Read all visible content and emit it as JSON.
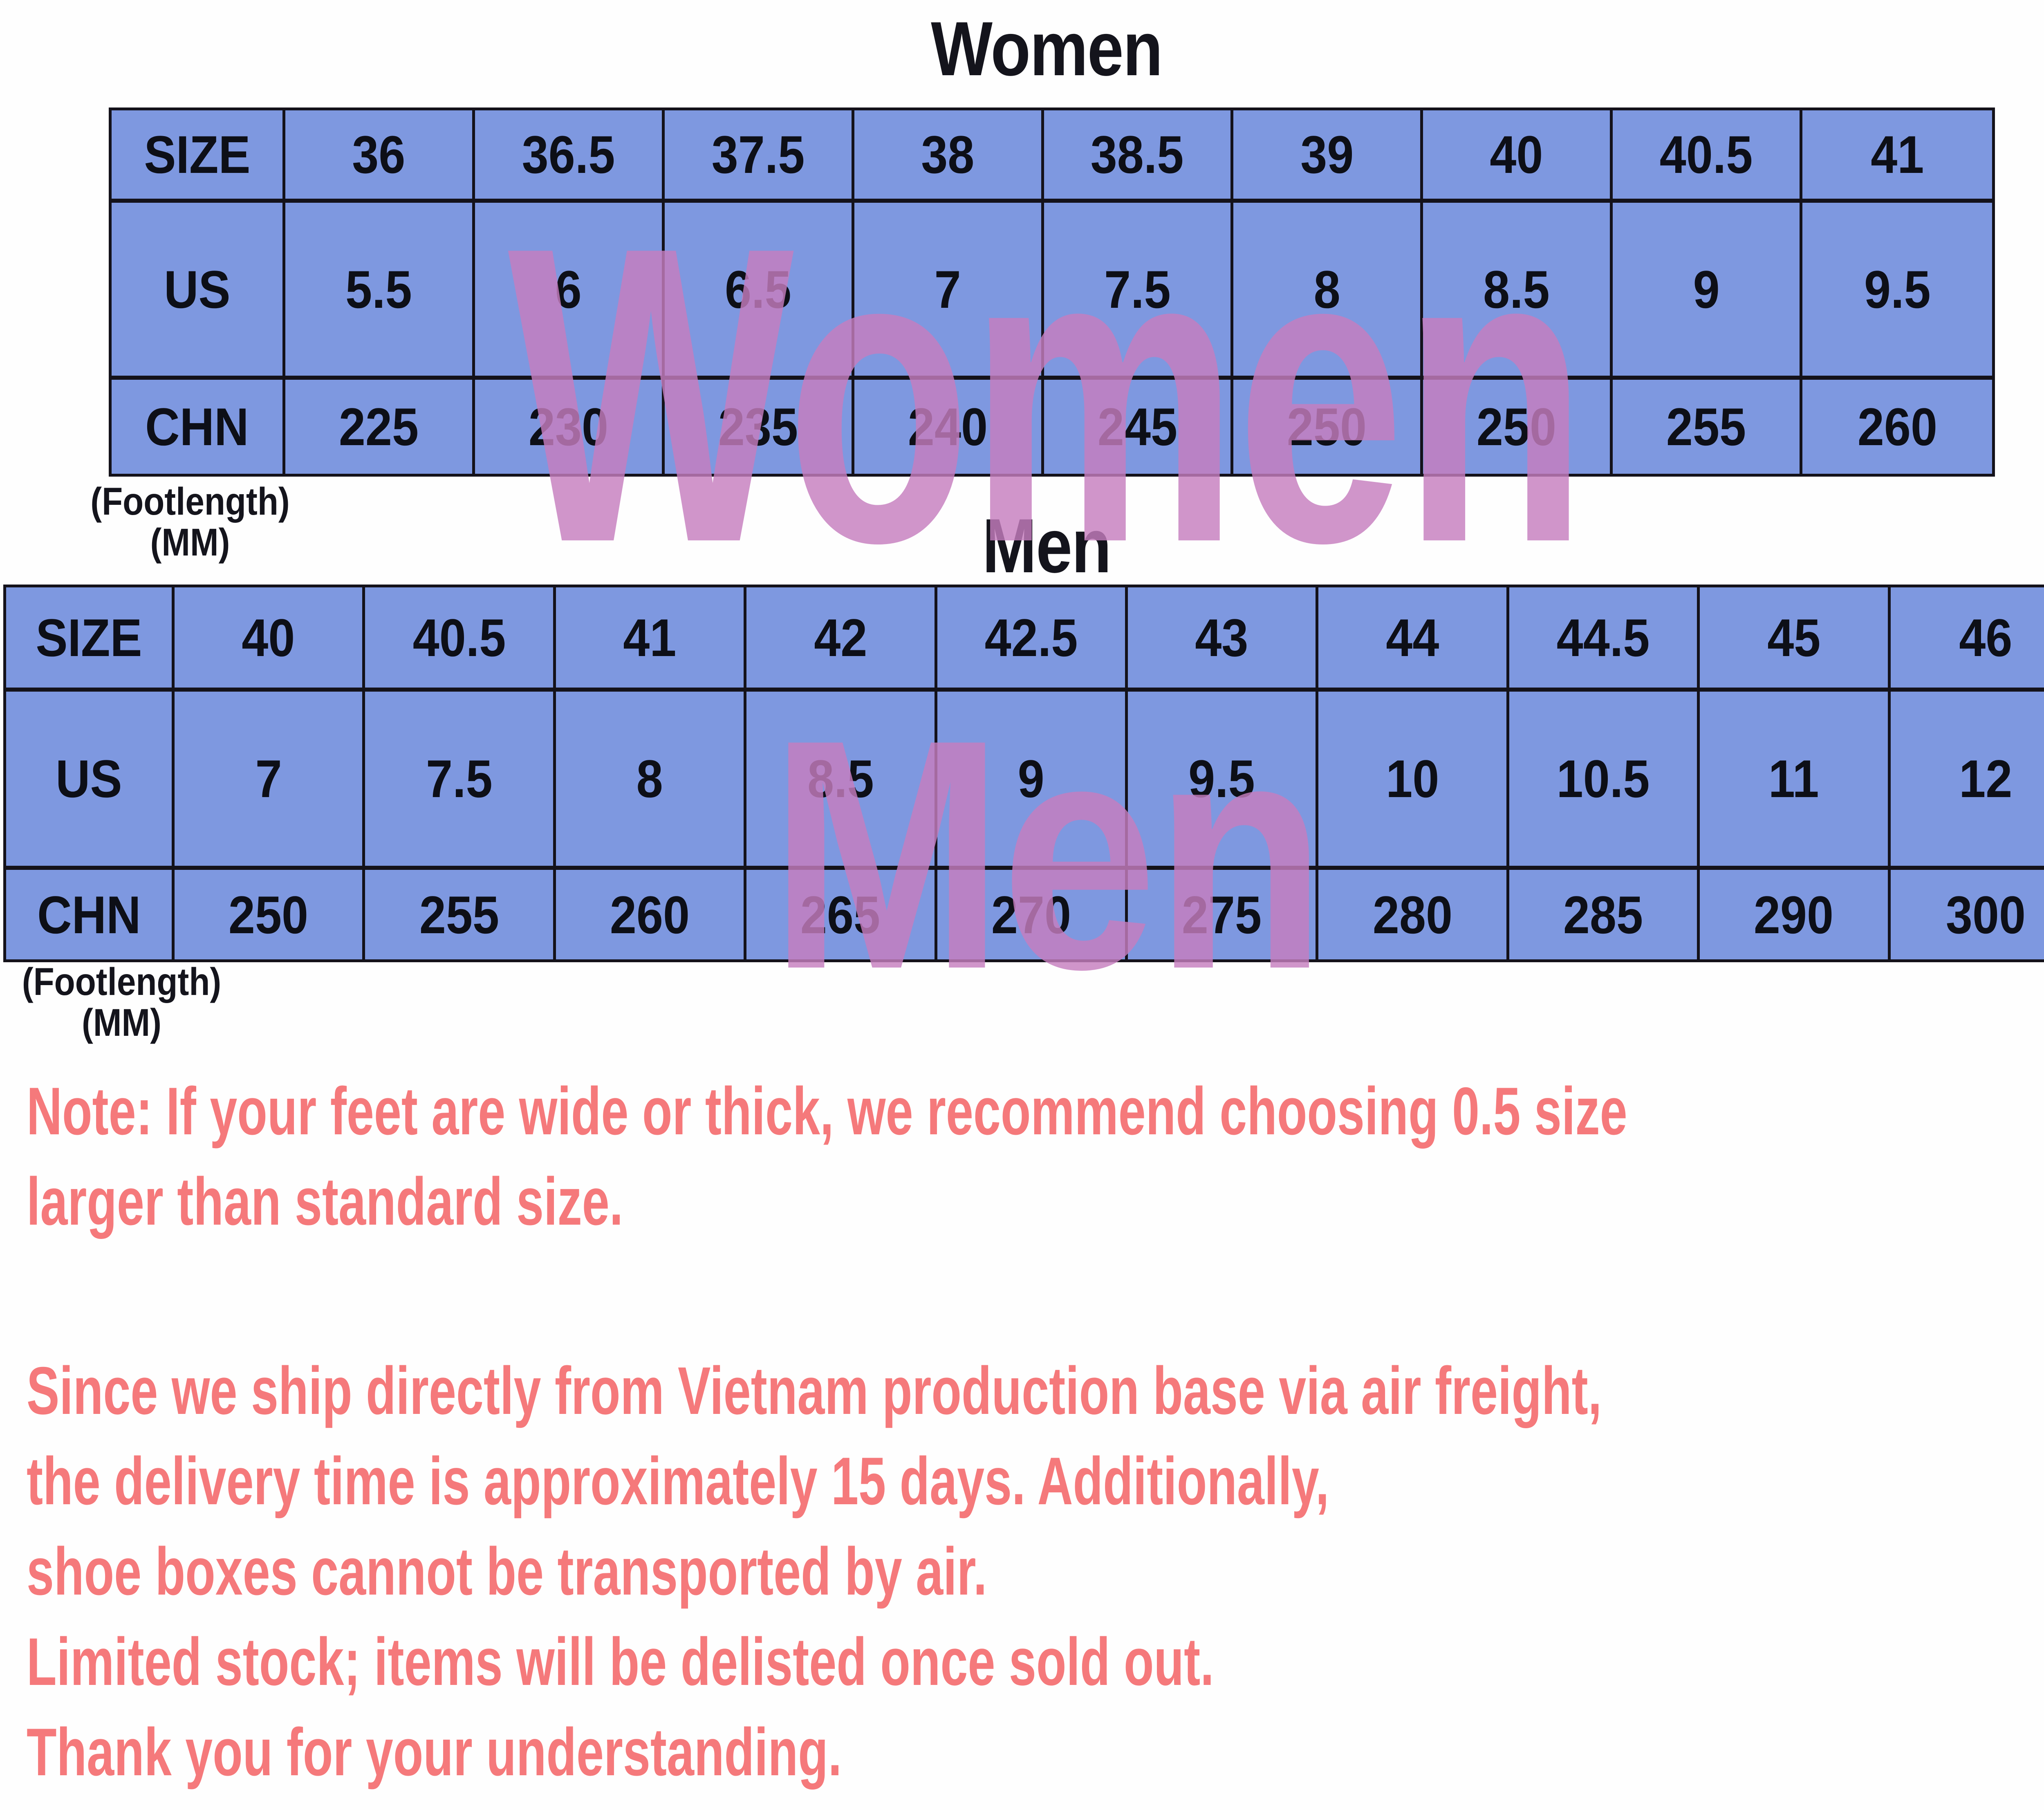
{
  "colors": {
    "table_blue": "#7e98e0",
    "table_border": "#14121a",
    "text_black": "#14141c",
    "watermark_pink": "rgba(198,126,190,0.82)",
    "note_coral": "#f5797b",
    "background": "#fefefe"
  },
  "tables": [
    {
      "title": "Women",
      "watermark": "Women",
      "footnote_line1": "(Footlength)",
      "footnote_line2": "(MM)",
      "rows": [
        {
          "label": "SIZE",
          "values": [
            "36",
            "36.5",
            "37.5",
            "38",
            "38.5",
            "39",
            "40",
            "40.5",
            "41"
          ]
        },
        {
          "label": "US",
          "values": [
            "5.5",
            "6",
            "6.5",
            "7",
            "7.5",
            "8",
            "8.5",
            "9",
            "9.5"
          ]
        },
        {
          "label": "CHN",
          "values": [
            "225",
            "230",
            "235",
            "240",
            "245",
            "250",
            "250",
            "255",
            "260"
          ]
        }
      ]
    },
    {
      "title": "Men",
      "watermark": "Men",
      "footnote_line1": "(Footlength)",
      "footnote_line2": "(MM)",
      "rows": [
        {
          "label": "SIZE",
          "values": [
            "40",
            "40.5",
            "41",
            "42",
            "42.5",
            "43",
            "44",
            "44.5",
            "45",
            "46"
          ]
        },
        {
          "label": "US",
          "values": [
            "7",
            "7.5",
            "8",
            "8.5",
            "9",
            "9.5",
            "10",
            "10.5",
            "11",
            "12"
          ]
        },
        {
          "label": "CHN",
          "values": [
            "250",
            "255",
            "260",
            "265",
            "270",
            "275",
            "280",
            "285",
            "290",
            "300"
          ]
        }
      ]
    }
  ],
  "notes": {
    "paragraph1": [
      "Note: If your feet are wide or thick, we recommend choosing 0.5 size",
      "larger than standard size."
    ],
    "paragraph2": [
      "Since we ship directly from Vietnam production base via air freight,",
      "the delivery time is approximately 15 days. Additionally,",
      "shoe boxes cannot be transported by air.",
      "Limited stock; items will be delisted once sold out.",
      "Thank you for your understanding."
    ]
  }
}
